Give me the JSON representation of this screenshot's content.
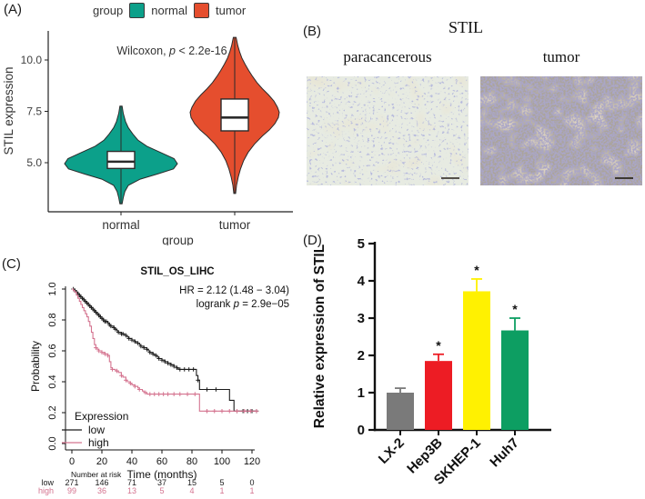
{
  "panels": {
    "a": {
      "label": "(A)"
    },
    "b": {
      "label": "(B)",
      "title": "STIL",
      "image_labels": [
        "paracancerous",
        "tumor"
      ]
    },
    "c": {
      "label": "(C)"
    },
    "d": {
      "label": "(D)"
    }
  },
  "chart_data": [
    {
      "id": "violin-expression",
      "type": "violin",
      "legend_title": "group",
      "x_label": "group",
      "y_label": "STIL expression",
      "y_ticks": [
        5.0,
        7.5,
        10.0
      ],
      "y_tick_labels": [
        "5.0",
        "7.5",
        "10.0"
      ],
      "ylim": [
        2.8,
        11.6
      ],
      "categories": [
        "normal",
        "tumor"
      ],
      "annotation": {
        "pre": "Wilcoxon, ",
        "p": "p",
        "post": " < 2.2e-16"
      },
      "series": [
        {
          "name": "normal",
          "color": "#0ca08a",
          "profile": [
            [
              3.0,
              0.02
            ],
            [
              3.3,
              0.04
            ],
            [
              3.6,
              0.07
            ],
            [
              3.9,
              0.13
            ],
            [
              4.2,
              0.34
            ],
            [
              4.45,
              0.65
            ],
            [
              4.7,
              0.93
            ],
            [
              4.95,
              1.0
            ],
            [
              5.2,
              0.94
            ],
            [
              5.5,
              0.7
            ],
            [
              5.8,
              0.46
            ],
            [
              6.1,
              0.3
            ],
            [
              6.4,
              0.21
            ],
            [
              6.7,
              0.13
            ],
            [
              7.0,
              0.08
            ],
            [
              7.4,
              0.04
            ],
            [
              7.75,
              0.02
            ]
          ],
          "box": {
            "q1": 4.72,
            "median": 5.05,
            "q3": 5.55
          }
        },
        {
          "name": "tumor",
          "color": "#e54e2e",
          "profile": [
            [
              3.5,
              0.02
            ],
            [
              3.9,
              0.04
            ],
            [
              4.3,
              0.08
            ],
            [
              4.7,
              0.13
            ],
            [
              5.1,
              0.2
            ],
            [
              5.5,
              0.3
            ],
            [
              5.9,
              0.44
            ],
            [
              6.3,
              0.62
            ],
            [
              6.6,
              0.78
            ],
            [
              6.9,
              0.9
            ],
            [
              7.2,
              0.98
            ],
            [
              7.45,
              1.0
            ],
            [
              7.7,
              0.96
            ],
            [
              8.0,
              0.88
            ],
            [
              8.3,
              0.76
            ],
            [
              8.6,
              0.62
            ],
            [
              8.9,
              0.5
            ],
            [
              9.2,
              0.4
            ],
            [
              9.5,
              0.31
            ],
            [
              9.8,
              0.23
            ],
            [
              10.1,
              0.16
            ],
            [
              10.4,
              0.11
            ],
            [
              10.7,
              0.07
            ],
            [
              11.1,
              0.03
            ]
          ],
          "box": {
            "q1": 6.55,
            "median": 7.2,
            "q3": 8.1
          }
        }
      ]
    },
    {
      "id": "km-survival",
      "type": "line",
      "title": "STIL_OS_LIHC",
      "x_label": "Time (months)",
      "y_label": "Probability",
      "x_ticks": [
        0,
        20,
        40,
        60,
        80,
        100,
        120
      ],
      "y_ticks": [
        0.0,
        0.2,
        0.4,
        0.6,
        0.8,
        1.0
      ],
      "y_tick_labels": [
        "0.0",
        "0.2",
        "0.4",
        "0.6",
        "0.8",
        "1.0"
      ],
      "xlim": [
        0,
        123
      ],
      "ylim": [
        0,
        1
      ],
      "annotations": {
        "hr": "HR = 2.12 (1.48 − 3.04)",
        "logrank_pre": "logrank ",
        "p": "p",
        "logrank_post": " = 2.9e−05"
      },
      "legend_title": "Expression",
      "series": [
        {
          "name": "low",
          "color": "#1a1a1a",
          "steps": [
            [
              0,
              1.0
            ],
            [
              2,
              0.99
            ],
            [
              3,
              0.98
            ],
            [
              4,
              0.97
            ],
            [
              5,
              0.96
            ],
            [
              6,
              0.95
            ],
            [
              7,
              0.94
            ],
            [
              8,
              0.93
            ],
            [
              9,
              0.92
            ],
            [
              10,
              0.91
            ],
            [
              11,
              0.9
            ],
            [
              12,
              0.89
            ],
            [
              13,
              0.88
            ],
            [
              14,
              0.87
            ],
            [
              15,
              0.86
            ],
            [
              16,
              0.85
            ],
            [
              17,
              0.84
            ],
            [
              18,
              0.83
            ],
            [
              19,
              0.82
            ],
            [
              20,
              0.81
            ],
            [
              21,
              0.8
            ],
            [
              22,
              0.79
            ],
            [
              24,
              0.78
            ],
            [
              25,
              0.77
            ],
            [
              26,
              0.76
            ],
            [
              28,
              0.75
            ],
            [
              29,
              0.74
            ],
            [
              30,
              0.73
            ],
            [
              31,
              0.72
            ],
            [
              33,
              0.71
            ],
            [
              35,
              0.7
            ],
            [
              37,
              0.69
            ],
            [
              38,
              0.68
            ],
            [
              40,
              0.67
            ],
            [
              42,
              0.66
            ],
            [
              43,
              0.65
            ],
            [
              45,
              0.64
            ],
            [
              46,
              0.63
            ],
            [
              48,
              0.62
            ],
            [
              50,
              0.61
            ],
            [
              51,
              0.6
            ],
            [
              52,
              0.59
            ],
            [
              54,
              0.58
            ],
            [
              55,
              0.57
            ],
            [
              57,
              0.56
            ],
            [
              58,
              0.55
            ],
            [
              60,
              0.54
            ],
            [
              62,
              0.53
            ],
            [
              64,
              0.52
            ],
            [
              66,
              0.51
            ],
            [
              68,
              0.5
            ],
            [
              70,
              0.49
            ],
            [
              71,
              0.48
            ],
            [
              82,
              0.48
            ],
            [
              83,
              0.44
            ],
            [
              84,
              0.41
            ],
            [
              85,
              0.35
            ],
            [
              104,
              0.35
            ],
            [
              105,
              0.28
            ],
            [
              107,
              0.28
            ],
            [
              108,
              0.21
            ],
            [
              123,
              0.21
            ]
          ],
          "censors": [
            1,
            2,
            3,
            4,
            5,
            6,
            7,
            8,
            9,
            10,
            11,
            12,
            13,
            14,
            15,
            16,
            17,
            18,
            19,
            20,
            21,
            22,
            23,
            25,
            26,
            28,
            29,
            31,
            33,
            34,
            36,
            38,
            40,
            42,
            44,
            46,
            48,
            50,
            52,
            54,
            56,
            58,
            60,
            62,
            64,
            66,
            68,
            70,
            72,
            75,
            78,
            81,
            84,
            90,
            96,
            110,
            114,
            117,
            120,
            123
          ]
        },
        {
          "name": "high",
          "color": "#d4738f",
          "steps": [
            [
              0,
              1.0
            ],
            [
              1,
              0.99
            ],
            [
              2,
              0.98
            ],
            [
              3,
              0.96
            ],
            [
              4,
              0.94
            ],
            [
              5,
              0.92
            ],
            [
              6,
              0.9
            ],
            [
              7,
              0.88
            ],
            [
              8,
              0.86
            ],
            [
              9,
              0.84
            ],
            [
              10,
              0.82
            ],
            [
              11,
              0.79
            ],
            [
              12,
              0.76
            ],
            [
              13,
              0.72
            ],
            [
              14,
              0.68
            ],
            [
              15,
              0.64
            ],
            [
              16,
              0.62
            ],
            [
              17,
              0.61
            ],
            [
              18,
              0.6
            ],
            [
              20,
              0.59
            ],
            [
              22,
              0.58
            ],
            [
              24,
              0.57
            ],
            [
              25,
              0.53
            ],
            [
              26,
              0.49
            ],
            [
              27,
              0.48
            ],
            [
              29,
              0.47
            ],
            [
              31,
              0.46
            ],
            [
              33,
              0.44
            ],
            [
              34,
              0.43
            ],
            [
              36,
              0.41
            ],
            [
              37,
              0.4
            ],
            [
              39,
              0.39
            ],
            [
              40,
              0.38
            ],
            [
              42,
              0.37
            ],
            [
              44,
              0.36
            ],
            [
              45,
              0.35
            ],
            [
              47,
              0.34
            ],
            [
              48,
              0.33
            ],
            [
              50,
              0.32
            ],
            [
              84,
              0.32
            ],
            [
              85,
              0.21
            ],
            [
              123,
              0.21
            ]
          ],
          "censors": [
            16,
            18,
            20,
            22,
            24,
            27,
            30,
            33,
            36,
            39,
            42,
            45,
            49,
            52,
            55,
            58,
            61,
            64,
            68,
            72,
            77,
            82,
            90,
            95,
            100,
            105,
            110,
            115,
            119,
            123
          ]
        }
      ],
      "risk_table": {
        "header": "Number at risk",
        "rows": [
          {
            "name": "low",
            "color": "#1a1a1a",
            "values": [
              271,
              146,
              71,
              37,
              15,
              5,
              0
            ]
          },
          {
            "name": "high",
            "color": "#d4738f",
            "values": [
              99,
              36,
              13,
              5,
              4,
              1,
              1
            ]
          }
        ]
      }
    },
    {
      "id": "bar-cell-lines",
      "type": "bar",
      "y_label": "Relative expression of STIL",
      "categories": [
        "LX-2",
        "Hep3B",
        "SKHEP-1",
        "Huh7"
      ],
      "values": [
        1.0,
        1.85,
        3.72,
        2.67
      ],
      "errors": [
        0.12,
        0.18,
        0.33,
        0.33
      ],
      "sig": [
        "",
        "*",
        "*",
        "*"
      ],
      "colors": [
        "#7a7a7a",
        "#ed1c24",
        "#fff101",
        "#0d9e62"
      ],
      "y_ticks": [
        0,
        1,
        2,
        3,
        4,
        5
      ],
      "ylim": [
        0,
        5
      ]
    }
  ]
}
